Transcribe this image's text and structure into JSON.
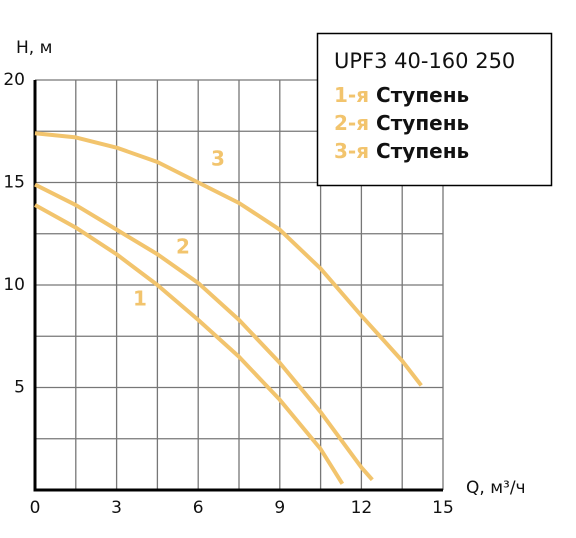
{
  "chart_data": {
    "type": "line",
    "y_label": "H, м",
    "x_label": "Q, м³/ч",
    "xlim": [
      0,
      15
    ],
    "ylim": [
      0,
      20
    ],
    "xticks": [
      0,
      3,
      6,
      9,
      12,
      15
    ],
    "yticks": [
      5,
      10,
      15,
      20
    ],
    "xgrid": [
      1.5,
      3,
      4.5,
      6,
      7.5,
      9,
      10.5,
      12,
      13.5,
      15
    ],
    "ygrid": [
      2.5,
      5,
      7.5,
      10,
      12.5,
      15,
      17.5,
      20
    ],
    "legend": {
      "title": "UPF3 40-160 250",
      "entries": [
        {
          "prefix": "1-я",
          "text": "Ступень"
        },
        {
          "prefix": "2-я",
          "text": "Ступень"
        },
        {
          "prefix": "3-я",
          "text": "Ступень"
        }
      ]
    },
    "series": [
      {
        "name": "1",
        "color": "#f2c46d",
        "x": [
          0,
          1.5,
          3,
          4.5,
          6,
          7.5,
          9,
          10.5,
          11.3
        ],
        "values": [
          13.9,
          12.8,
          11.5,
          10.0,
          8.3,
          6.5,
          4.4,
          2.0,
          0.3
        ]
      },
      {
        "name": "2",
        "color": "#f2c46d",
        "x": [
          0,
          1.5,
          3,
          4.5,
          6,
          7.5,
          9,
          10.5,
          12,
          12.4
        ],
        "values": [
          14.9,
          13.9,
          12.7,
          11.5,
          10.1,
          8.3,
          6.2,
          3.8,
          1.1,
          0.5
        ]
      },
      {
        "name": "3",
        "color": "#f2c46d",
        "x": [
          0,
          1.5,
          3,
          4.5,
          6,
          7.5,
          9,
          10.5,
          12,
          13.5,
          14.2
        ],
        "values": [
          17.4,
          17.2,
          16.7,
          16.0,
          15.0,
          14.0,
          12.7,
          10.8,
          8.5,
          6.3,
          5.1
        ]
      }
    ]
  }
}
